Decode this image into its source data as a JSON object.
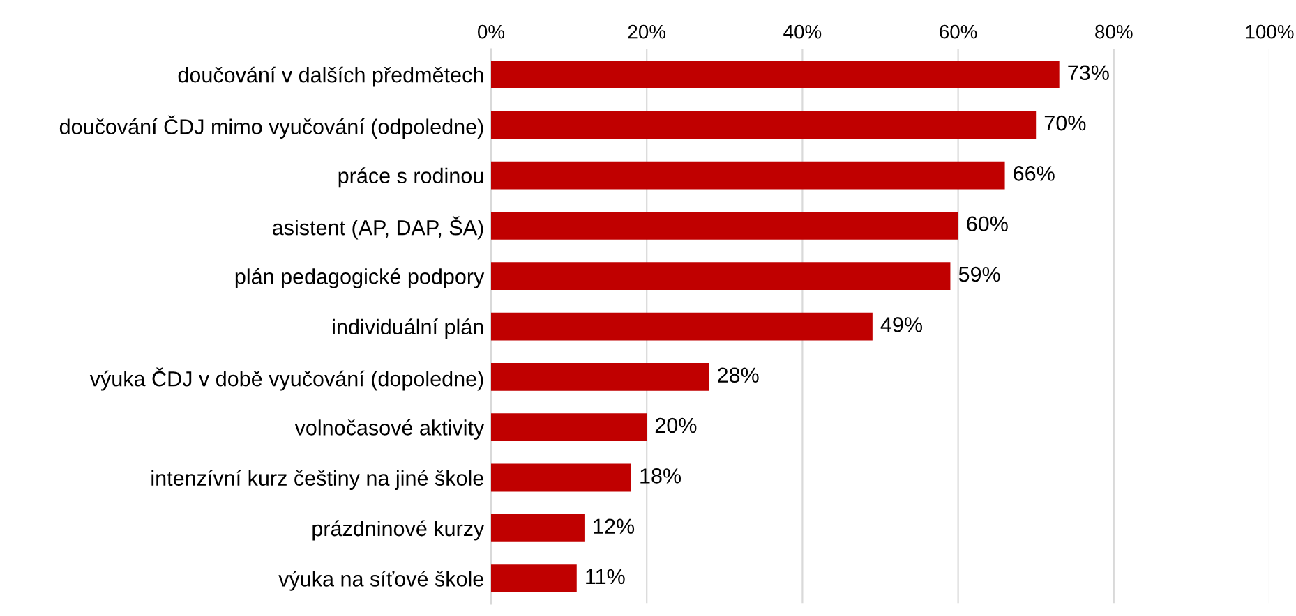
{
  "chart_data": {
    "type": "bar",
    "orientation": "horizontal",
    "categories": [
      "doučování v dalších předmětech",
      "doučování ČDJ mimo vyučování (odpoledne)",
      "práce s rodinou",
      "asistent (AP, DAP, ŠA)",
      "plán pedagogické podpory",
      "individuální plán",
      "výuka ČDJ v době vyučování (dopoledne)",
      "volnočasové aktivity",
      "intenzívní kurz češtiny na jiné škole",
      "prázdninové kurzy",
      "výuka na síťové škole"
    ],
    "values": [
      73,
      70,
      66,
      60,
      59,
      49,
      28,
      20,
      18,
      12,
      11
    ],
    "value_labels": [
      "73%",
      "70%",
      "66%",
      "60%",
      "59%",
      "49%",
      "28%",
      "20%",
      "18%",
      "12%",
      "11%"
    ],
    "color": "#c00000",
    "xlim": [
      0,
      100
    ],
    "xticks": [
      {
        "value": 0,
        "label": "0%"
      },
      {
        "value": 20,
        "label": "20%"
      },
      {
        "value": 40,
        "label": "40%"
      },
      {
        "value": 60,
        "label": "60%"
      },
      {
        "value": 80,
        "label": "80%"
      },
      {
        "value": 100,
        "label": "100%"
      }
    ],
    "grid": "x",
    "legend": false
  }
}
